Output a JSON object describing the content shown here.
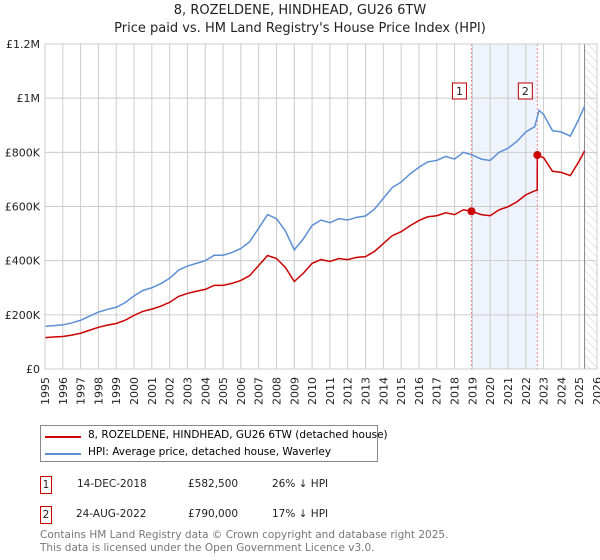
{
  "chart_data": {
    "type": "line",
    "title": "8, ROZELDENE, HINDHEAD, GU26 6TW",
    "subtitle": "Price paid vs. HM Land Registry's House Price Index (HPI)",
    "xlim": [
      1995,
      2026
    ],
    "ylim": [
      0,
      1200000
    ],
    "x_ticks": [
      "1995",
      "1996",
      "1997",
      "1998",
      "1999",
      "2000",
      "2001",
      "2002",
      "2003",
      "2004",
      "2005",
      "2006",
      "2007",
      "2008",
      "2009",
      "2010",
      "2011",
      "2012",
      "2013",
      "2014",
      "2015",
      "2016",
      "2017",
      "2018",
      "2019",
      "2020",
      "2021",
      "2022",
      "2023",
      "2024",
      "2025",
      "2026"
    ],
    "y_ticks": [
      {
        "v": 0,
        "label": "£0"
      },
      {
        "v": 200000,
        "label": "£200K"
      },
      {
        "v": 400000,
        "label": "£400K"
      },
      {
        "v": 600000,
        "label": "£600K"
      },
      {
        "v": 800000,
        "label": "£800K"
      },
      {
        "v": 1000000,
        "label": "£1M"
      },
      {
        "v": 1200000,
        "label": "£1.2M"
      }
    ],
    "grid": true,
    "series": [
      {
        "name": "8, ROZELDENE, HINDHEAD, GU26 6TW (detached house)",
        "color": "#cc0000",
        "unit": "£K",
        "points": [
          [
            1995,
            116
          ],
          [
            1995.5,
            118
          ],
          [
            1996,
            120
          ],
          [
            1996.5,
            125
          ],
          [
            1997,
            132
          ],
          [
            1997.5,
            143
          ],
          [
            1998,
            154
          ],
          [
            1998.5,
            162
          ],
          [
            1999,
            168
          ],
          [
            1999.5,
            180
          ],
          [
            2000,
            198
          ],
          [
            2000.5,
            213
          ],
          [
            2001,
            221
          ],
          [
            2001.5,
            232
          ],
          [
            2002,
            246
          ],
          [
            2002.5,
            268
          ],
          [
            2003,
            279
          ],
          [
            2003.5,
            287
          ],
          [
            2004,
            294
          ],
          [
            2004.5,
            309
          ],
          [
            2005,
            309
          ],
          [
            2005.5,
            316
          ],
          [
            2006,
            327
          ],
          [
            2006.5,
            345
          ],
          [
            2007,
            382
          ],
          [
            2007.5,
            419
          ],
          [
            2008,
            408
          ],
          [
            2008.5,
            375
          ],
          [
            2009,
            323
          ],
          [
            2009.5,
            353
          ],
          [
            2010,
            390
          ],
          [
            2010.5,
            404
          ],
          [
            2011,
            397
          ],
          [
            2011.5,
            408
          ],
          [
            2012,
            404
          ],
          [
            2012.5,
            412
          ],
          [
            2013,
            415
          ],
          [
            2013.5,
            434
          ],
          [
            2014,
            463
          ],
          [
            2014.5,
            492
          ],
          [
            2015,
            507
          ],
          [
            2015.5,
            529
          ],
          [
            2016,
            548
          ],
          [
            2016.5,
            562
          ],
          [
            2017,
            566
          ],
          [
            2017.5,
            577
          ],
          [
            2018,
            570
          ],
          [
            2018.5,
            588
          ],
          [
            2018.95,
            582.5
          ],
          [
            2019.5,
            570
          ],
          [
            2020,
            566
          ],
          [
            2020.5,
            588
          ],
          [
            2021,
            599
          ],
          [
            2021.5,
            617
          ],
          [
            2022,
            643
          ],
          [
            2022.5,
            658
          ],
          [
            2022.64,
            660
          ],
          [
            2022.65,
            790
          ],
          [
            2023,
            780
          ],
          [
            2023.5,
            730
          ],
          [
            2024,
            726
          ],
          [
            2024.5,
            714
          ],
          [
            2025,
            768
          ],
          [
            2025.3,
            805
          ]
        ]
      },
      {
        "name": "HPI: Average price, detached house, Waverley",
        "color": "#5b8fd4",
        "unit": "£K",
        "points": [
          [
            1995,
            158
          ],
          [
            1995.5,
            160
          ],
          [
            1996,
            163
          ],
          [
            1996.5,
            170
          ],
          [
            1997,
            180
          ],
          [
            1997.5,
            195
          ],
          [
            1998,
            210
          ],
          [
            1998.5,
            220
          ],
          [
            1999,
            228
          ],
          [
            1999.5,
            245
          ],
          [
            2000,
            270
          ],
          [
            2000.5,
            290
          ],
          [
            2001,
            300
          ],
          [
            2001.5,
            315
          ],
          [
            2002,
            335
          ],
          [
            2002.5,
            365
          ],
          [
            2003,
            380
          ],
          [
            2003.5,
            390
          ],
          [
            2004,
            400
          ],
          [
            2004.5,
            420
          ],
          [
            2005,
            420
          ],
          [
            2005.5,
            430
          ],
          [
            2006,
            445
          ],
          [
            2006.5,
            470
          ],
          [
            2007,
            520
          ],
          [
            2007.5,
            570
          ],
          [
            2008,
            555
          ],
          [
            2008.5,
            510
          ],
          [
            2009,
            440
          ],
          [
            2009.5,
            480
          ],
          [
            2010,
            530
          ],
          [
            2010.5,
            550
          ],
          [
            2011,
            540
          ],
          [
            2011.5,
            555
          ],
          [
            2012,
            550
          ],
          [
            2012.5,
            560
          ],
          [
            2013,
            565
          ],
          [
            2013.5,
            590
          ],
          [
            2014,
            630
          ],
          [
            2014.5,
            670
          ],
          [
            2015,
            690
          ],
          [
            2015.5,
            720
          ],
          [
            2016,
            745
          ],
          [
            2016.5,
            765
          ],
          [
            2017,
            770
          ],
          [
            2017.5,
            785
          ],
          [
            2018,
            775
          ],
          [
            2018.5,
            800
          ],
          [
            2019,
            790
          ],
          [
            2019.5,
            775
          ],
          [
            2020,
            770
          ],
          [
            2020.5,
            800
          ],
          [
            2021,
            815
          ],
          [
            2021.5,
            840
          ],
          [
            2022,
            875
          ],
          [
            2022.5,
            895
          ],
          [
            2022.75,
            955
          ],
          [
            2023,
            940
          ],
          [
            2023.5,
            880
          ],
          [
            2024,
            875
          ],
          [
            2024.5,
            860
          ],
          [
            2025,
            925
          ],
          [
            2025.3,
            970
          ]
        ]
      }
    ],
    "sales": [
      {
        "id": "1",
        "x": 2018.95,
        "price": 582500,
        "date": "14-DEC-2018",
        "price_label": "£582,500",
        "delta": "26% ↓ HPI"
      },
      {
        "id": "2",
        "x": 2022.65,
        "price": 790000,
        "date": "24-AUG-2022",
        "price_label": "£790,000",
        "delta": "17% ↓ HPI"
      }
    ],
    "shaded_range": [
      2018.95,
      2022.65
    ],
    "forecast_start": 2025.3
  },
  "footer": [
    "Contains HM Land Registry data © Crown copyright and database right 2025.",
    "This data is licensed under the Open Government Licence v3.0."
  ]
}
